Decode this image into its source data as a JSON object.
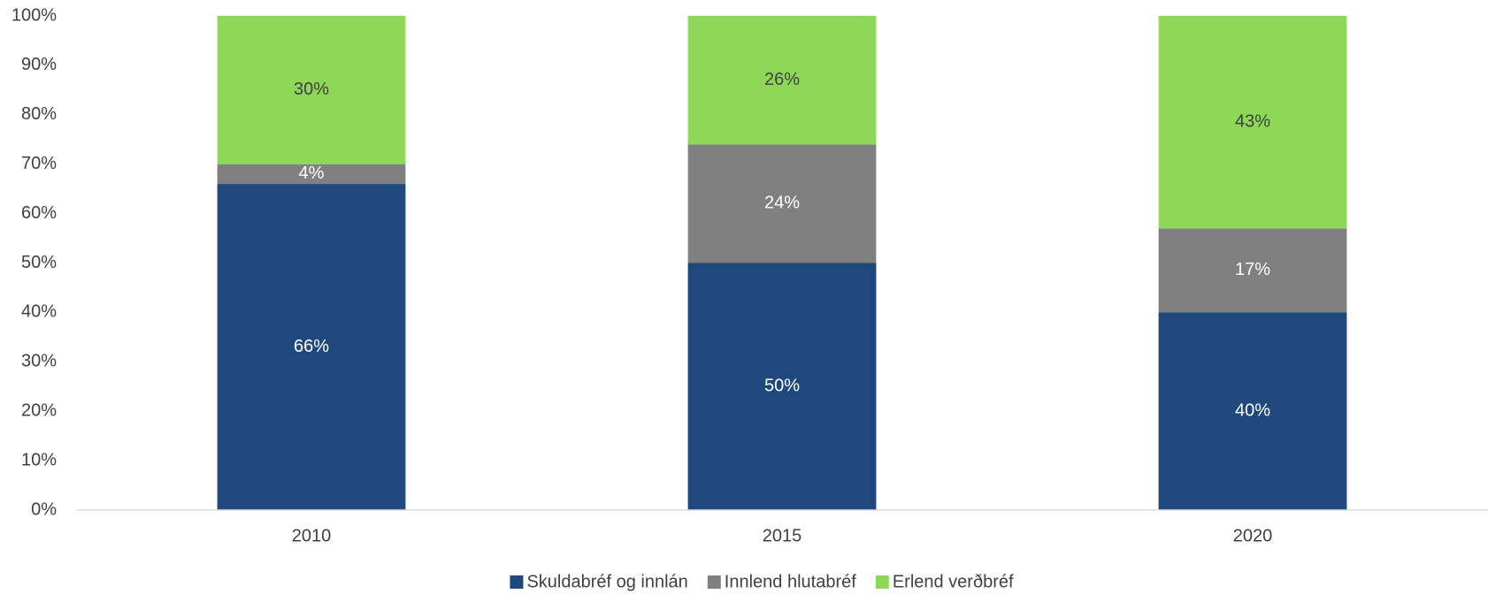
{
  "chart_data": {
    "type": "stacked_bar",
    "categories": [
      "2010",
      "2015",
      "2020"
    ],
    "series": [
      {
        "name": "Skuldabréf og innlán",
        "color": "#1f497d",
        "values": [
          66,
          50,
          40
        ],
        "value_labels": [
          "66%",
          "50%",
          "40%"
        ]
      },
      {
        "name": "Innlend hlutabréf",
        "color": "#808080",
        "values": [
          4,
          24,
          17
        ],
        "value_labels": [
          "4%",
          "24%",
          "17%"
        ]
      },
      {
        "name": "Erlend verðbréf",
        "color": "#8dd957",
        "values": [
          30,
          26,
          43
        ],
        "value_labels": [
          "30%",
          "26%",
          "43%"
        ]
      }
    ],
    "ylim": [
      0,
      100
    ],
    "yticks": [
      {
        "value": 0,
        "label": "0%"
      },
      {
        "value": 10,
        "label": "10%"
      },
      {
        "value": 20,
        "label": "20%"
      },
      {
        "value": 30,
        "label": "30%"
      },
      {
        "value": 40,
        "label": "40%"
      },
      {
        "value": 50,
        "label": "50%"
      },
      {
        "value": 60,
        "label": "60%"
      },
      {
        "value": 70,
        "label": "70%"
      },
      {
        "value": 80,
        "label": "80%"
      },
      {
        "value": 90,
        "label": "90%"
      },
      {
        "value": 100,
        "label": "100%"
      }
    ],
    "grid": false,
    "legend": "bottom"
  }
}
